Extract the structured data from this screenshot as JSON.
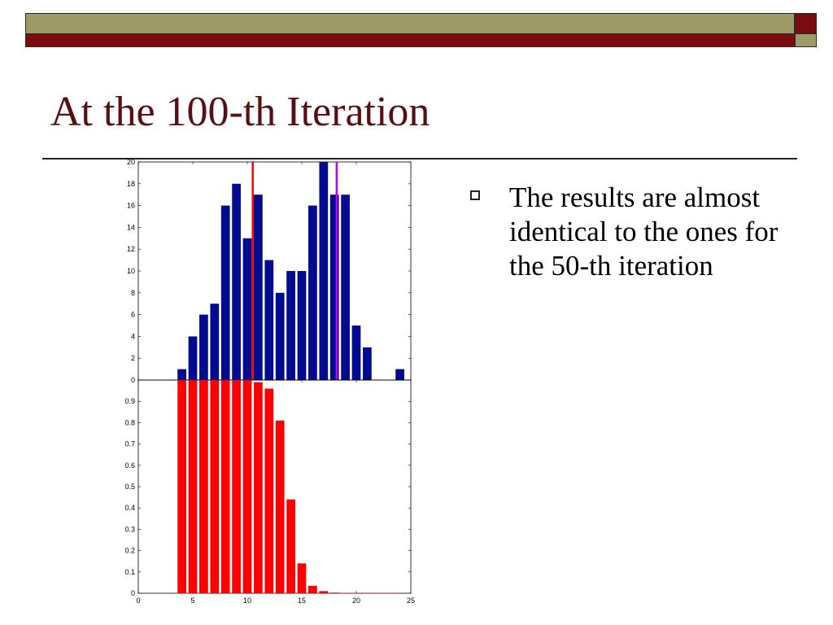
{
  "slide": {
    "title": "At the 100-th Iteration",
    "bullet": "The results are almost identical to the ones for the 50-th iteration"
  },
  "colors": {
    "band_top": "#9e9a68",
    "band_bottom": "#7a0c10",
    "accent_square": "#7a0c10",
    "title": "#5a0e10",
    "hist_bars": "#000b8f",
    "prob_bars": "#ff0000",
    "red_line": "#ff0000",
    "magenta_line": "#c000ff"
  },
  "chart_data": [
    {
      "type": "bar",
      "x": [
        4,
        5,
        6,
        7,
        8,
        9,
        10,
        11,
        12,
        13,
        14,
        15,
        16,
        17,
        18,
        19,
        20,
        21,
        22,
        23,
        24
      ],
      "values": [
        1,
        4,
        6,
        7,
        16,
        18,
        13,
        17,
        11,
        8,
        10,
        10,
        16,
        20,
        17,
        17,
        5,
        3,
        0,
        0,
        1
      ],
      "xlim": [
        0,
        25
      ],
      "ylim": [
        0,
        20
      ],
      "yticks": [
        "0",
        "2",
        "4",
        "6",
        "8",
        "10",
        "12",
        "14",
        "16",
        "18",
        "20"
      ],
      "xticks": [
        "0",
        "5",
        "10",
        "15",
        "20",
        "25"
      ],
      "vertical_lines": [
        {
          "x": 10.5,
          "color": "#ff0000"
        },
        {
          "x": 18.2,
          "color": "#c000ff"
        }
      ]
    },
    {
      "type": "bar",
      "x": [
        4,
        5,
        6,
        7,
        8,
        9,
        10,
        11,
        12,
        13,
        14,
        15,
        16,
        17,
        18,
        19,
        20,
        21,
        22,
        23,
        24
      ],
      "values": [
        1.0,
        1.0,
        1.0,
        1.0,
        1.0,
        1.0,
        1.0,
        0.99,
        0.96,
        0.81,
        0.44,
        0.14,
        0.035,
        0.01,
        0.003,
        0.002,
        0.002,
        0.002,
        0.002,
        0.002,
        0.002
      ],
      "xlim": [
        0,
        25
      ],
      "ylim": [
        0,
        1
      ],
      "yticks": [
        "0",
        "0.1",
        "0.2",
        "0.3",
        "0.4",
        "0.5",
        "0.6",
        "0.7",
        "0.8",
        "0.9"
      ],
      "xticks": [
        "0",
        "5",
        "10",
        "15",
        "20",
        "25"
      ]
    }
  ]
}
